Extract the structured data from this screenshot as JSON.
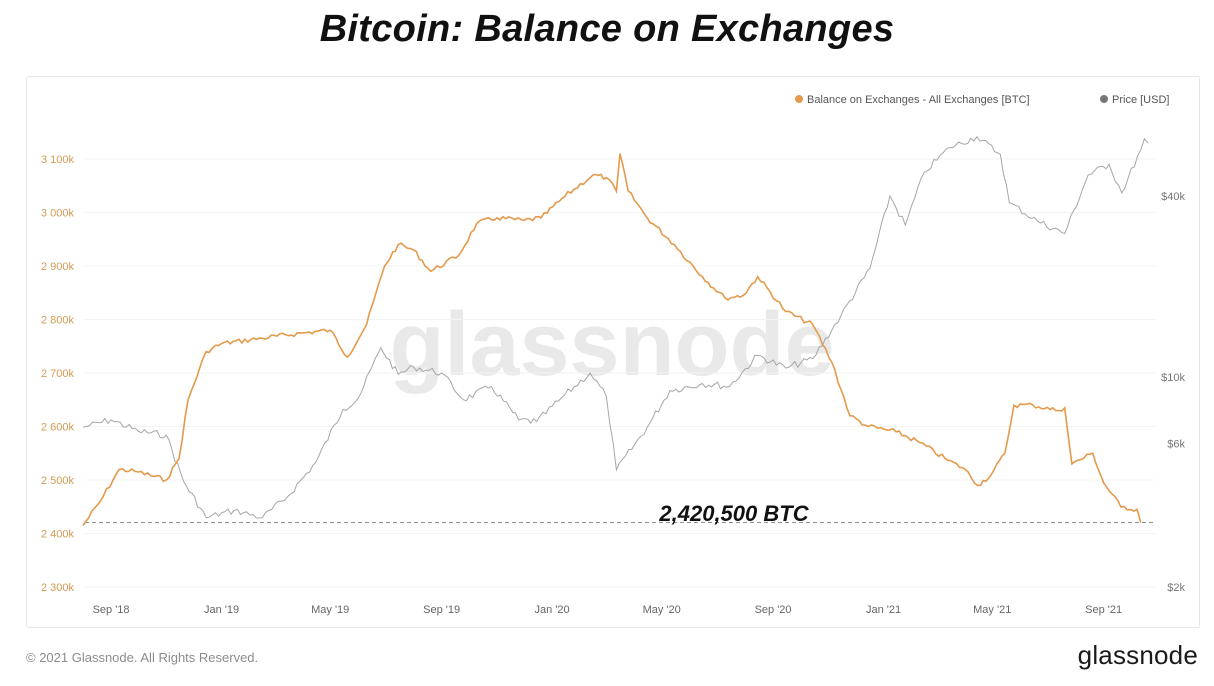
{
  "title": "Bitcoin: Balance on Exchanges",
  "footer": {
    "copyright": "© 2021 Glassnode. All Rights Reserved.",
    "logo": "glassnode"
  },
  "chart_data": {
    "type": "line",
    "watermark": "glassnode",
    "annotation": "2,420,500 BTC",
    "reference_line": 2420500,
    "legend": {
      "placement": "top-right"
    },
    "x_ticks": [
      "Sep '18",
      "Jan '19",
      "May '19",
      "Sep '19",
      "Jan '20",
      "May '20",
      "Sep '20",
      "Jan '21",
      "May '21",
      "Sep '21"
    ],
    "left_axis": {
      "ticks": [
        "2 300k",
        "2 400k",
        "2 500k",
        "2 600k",
        "2 700k",
        "2 800k",
        "2 900k",
        "3 000k",
        "3 100k"
      ],
      "range": [
        2300000,
        3100000
      ],
      "color": "#d39a55"
    },
    "right_axis": {
      "scale": "log",
      "ticks": [
        "$2k",
        "$6k",
        "$10k",
        "$40k"
      ],
      "tick_values": [
        2000,
        6000,
        10000,
        40000
      ],
      "color": "#777777"
    },
    "series": [
      {
        "name": "Balance on Exchanges - All Exchanges [BTC]",
        "axis": "left",
        "color": "#e39a4c",
        "points": [
          [
            "2018-08-01",
            2415000
          ],
          [
            "2018-08-20",
            2460000
          ],
          [
            "2018-09-10",
            2520000
          ],
          [
            "2018-10-01",
            2515000
          ],
          [
            "2018-11-01",
            2500000
          ],
          [
            "2018-11-15",
            2540000
          ],
          [
            "2018-11-25",
            2650000
          ],
          [
            "2018-12-15",
            2740000
          ],
          [
            "2019-01-01",
            2755000
          ],
          [
            "2019-02-15",
            2765000
          ],
          [
            "2019-04-01",
            2775000
          ],
          [
            "2019-05-01",
            2780000
          ],
          [
            "2019-05-20",
            2730000
          ],
          [
            "2019-06-10",
            2790000
          ],
          [
            "2019-06-30",
            2900000
          ],
          [
            "2019-07-15",
            2940000
          ],
          [
            "2019-08-01",
            2930000
          ],
          [
            "2019-08-20",
            2890000
          ],
          [
            "2019-09-20",
            2920000
          ],
          [
            "2019-10-10",
            2980000
          ],
          [
            "2019-11-01",
            2990000
          ],
          [
            "2019-12-01",
            2985000
          ],
          [
            "2019-12-20",
            2990000
          ],
          [
            "2020-01-15",
            3030000
          ],
          [
            "2020-02-15",
            3070000
          ],
          [
            "2020-03-01",
            3065000
          ],
          [
            "2020-03-12",
            3040000
          ],
          [
            "2020-03-16",
            3110000
          ],
          [
            "2020-03-25",
            3040000
          ],
          [
            "2020-04-15",
            2990000
          ],
          [
            "2020-05-15",
            2940000
          ],
          [
            "2020-06-15",
            2880000
          ],
          [
            "2020-07-10",
            2840000
          ],
          [
            "2020-07-30",
            2845000
          ],
          [
            "2020-08-15",
            2880000
          ],
          [
            "2020-09-15",
            2815000
          ],
          [
            "2020-10-15",
            2790000
          ],
          [
            "2020-11-05",
            2720000
          ],
          [
            "2020-11-25",
            2620000
          ],
          [
            "2020-12-15",
            2600000
          ],
          [
            "2021-01-15",
            2590000
          ],
          [
            "2021-02-10",
            2570000
          ],
          [
            "2021-03-10",
            2540000
          ],
          [
            "2021-04-01",
            2520000
          ],
          [
            "2021-04-15",
            2490000
          ],
          [
            "2021-04-30",
            2510000
          ],
          [
            "2021-05-15",
            2550000
          ],
          [
            "2021-05-25",
            2640000
          ],
          [
            "2021-06-15",
            2640000
          ],
          [
            "2021-07-10",
            2630000
          ],
          [
            "2021-07-20",
            2635000
          ],
          [
            "2021-07-28",
            2530000
          ],
          [
            "2021-08-20",
            2550000
          ],
          [
            "2021-09-01",
            2495000
          ],
          [
            "2021-09-20",
            2450000
          ],
          [
            "2021-10-08",
            2445000
          ],
          [
            "2021-10-12",
            2420500
          ]
        ]
      },
      {
        "name": "Price [USD]",
        "axis": "right",
        "color": "#a6a6a6",
        "points": [
          [
            "2018-08-01",
            6800
          ],
          [
            "2018-09-01",
            7200
          ],
          [
            "2018-10-01",
            6600
          ],
          [
            "2018-11-01",
            6400
          ],
          [
            "2018-11-20",
            4500
          ],
          [
            "2018-12-15",
            3400
          ],
          [
            "2019-01-15",
            3600
          ],
          [
            "2019-02-15",
            3400
          ],
          [
            "2019-03-15",
            4000
          ],
          [
            "2019-04-15",
            5200
          ],
          [
            "2019-05-15",
            7800
          ],
          [
            "2019-06-01",
            8500
          ],
          [
            "2019-06-26",
            12500
          ],
          [
            "2019-07-15",
            10200
          ],
          [
            "2019-08-01",
            10800
          ],
          [
            "2019-09-01",
            10300
          ],
          [
            "2019-09-25",
            8400
          ],
          [
            "2019-10-26",
            9300
          ],
          [
            "2019-11-25",
            7200
          ],
          [
            "2019-12-15",
            7100
          ],
          [
            "2020-01-15",
            8700
          ],
          [
            "2020-02-12",
            10300
          ],
          [
            "2020-03-01",
            8600
          ],
          [
            "2020-03-12",
            4900
          ],
          [
            "2020-04-15",
            6800
          ],
          [
            "2020-05-10",
            9000
          ],
          [
            "2020-06-15",
            9500
          ],
          [
            "2020-07-15",
            9300
          ],
          [
            "2020-08-15",
            11800
          ],
          [
            "2020-09-15",
            10700
          ],
          [
            "2020-10-15",
            11500
          ],
          [
            "2020-11-15",
            16000
          ],
          [
            "2020-12-17",
            23000
          ],
          [
            "2021-01-08",
            40000
          ],
          [
            "2021-01-25",
            32000
          ],
          [
            "2021-02-15",
            48000
          ],
          [
            "2021-03-15",
            58000
          ],
          [
            "2021-04-14",
            63000
          ],
          [
            "2021-05-10",
            55000
          ],
          [
            "2021-05-20",
            38000
          ],
          [
            "2021-06-20",
            33000
          ],
          [
            "2021-07-20",
            30000
          ],
          [
            "2021-08-15",
            47000
          ],
          [
            "2021-09-07",
            51000
          ],
          [
            "2021-09-21",
            41000
          ],
          [
            "2021-10-12",
            57000
          ],
          [
            "2021-10-16",
            62000
          ],
          [
            "2021-10-20",
            60000
          ]
        ]
      }
    ]
  }
}
